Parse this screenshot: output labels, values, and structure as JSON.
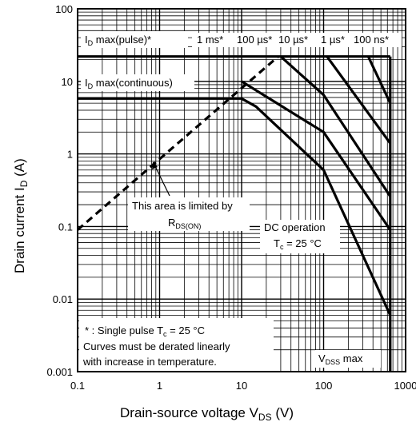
{
  "chart_data": {
    "type": "line",
    "xscale": "log",
    "yscale": "log",
    "xlim": [
      0.1,
      1000
    ],
    "ylim": [
      0.001,
      100
    ],
    "grid": true,
    "xlabel": {
      "main": "Drain-source voltage  V",
      "sub": "DS",
      "unit": "  (V)"
    },
    "ylabel": {
      "main": "Drain current  I",
      "sub": "D",
      "unit": "  (A)"
    },
    "x_ticks": [
      {
        "v": 0.1,
        "label": "0.1"
      },
      {
        "v": 1,
        "label": "1"
      },
      {
        "v": 10,
        "label": "10"
      },
      {
        "v": 100,
        "label": "100"
      },
      {
        "v": 1000,
        "label": "1000"
      }
    ],
    "y_ticks": [
      {
        "v": 0.001,
        "label": "0.001"
      },
      {
        "v": 0.01,
        "label": "0.01"
      },
      {
        "v": 0.1,
        "label": "0.1"
      },
      {
        "v": 1,
        "label": "1"
      },
      {
        "v": 10,
        "label": "10"
      },
      {
        "v": 100,
        "label": "100"
      }
    ],
    "series": [
      {
        "key": "id_pulse",
        "style": "solid",
        "x": [
          0.1,
          650
        ],
        "y": [
          22,
          22
        ]
      },
      {
        "key": "id_cont",
        "style": "solid",
        "x": [
          0.1,
          10
        ],
        "y": [
          5.8,
          5.8
        ]
      },
      {
        "key": "dc",
        "style": "solid",
        "x": [
          10,
          15,
          100,
          650
        ],
        "y": [
          5.8,
          4.5,
          0.6,
          0.006
        ]
      },
      {
        "key": "1ms",
        "style": "solid",
        "x": [
          10,
          100,
          650
        ],
        "y": [
          10,
          2,
          0.09
        ]
      },
      {
        "key": "100us",
        "style": "solid",
        "x": [
          30,
          100,
          650
        ],
        "y": [
          22,
          6.5,
          0.26
        ]
      },
      {
        "key": "10us",
        "style": "solid",
        "x": [
          110,
          650
        ],
        "y": [
          22,
          1.4
        ]
      },
      {
        "key": "1us",
        "style": "solid",
        "x": [
          350,
          650
        ],
        "y": [
          22,
          5
        ]
      },
      {
        "key": "vdss",
        "style": "solid",
        "x": [
          650,
          650
        ],
        "y": [
          0.001,
          22
        ]
      },
      {
        "key": "rds_on",
        "style": "dashed",
        "x": [
          0.1,
          28
        ],
        "y": [
          0.09,
          22
        ]
      }
    ]
  },
  "annotations": {
    "pulse": {
      "pre": "I",
      "sub": "D",
      "post": " max(pulse)*"
    },
    "cont": {
      "pre": "I",
      "sub": "D",
      "post": " max(continuous)"
    },
    "ms1": "1 ms*",
    "us100": "100 µs*",
    "us10": "10 µs*",
    "us1": "1 µs*",
    "ns100": "100 ns*",
    "limited_line1": "This area is limited by",
    "limited_r": "R",
    "limited_sub": "DS(ON)",
    "dc_line1": "DC operation",
    "dc_t": "T",
    "dc_t_sub": "c",
    "dc_t_rest": " = 25 °C",
    "note_line1_pre": "* : Single pulse T",
    "note_line1_sub": "c",
    "note_line1_post": " = 25 °C",
    "note_line2": "Curves must be derated linearly",
    "note_line3": "with increase in temperature.",
    "vdss_v": "V",
    "vdss_sub": "DSS",
    "vdss_post": " max"
  }
}
